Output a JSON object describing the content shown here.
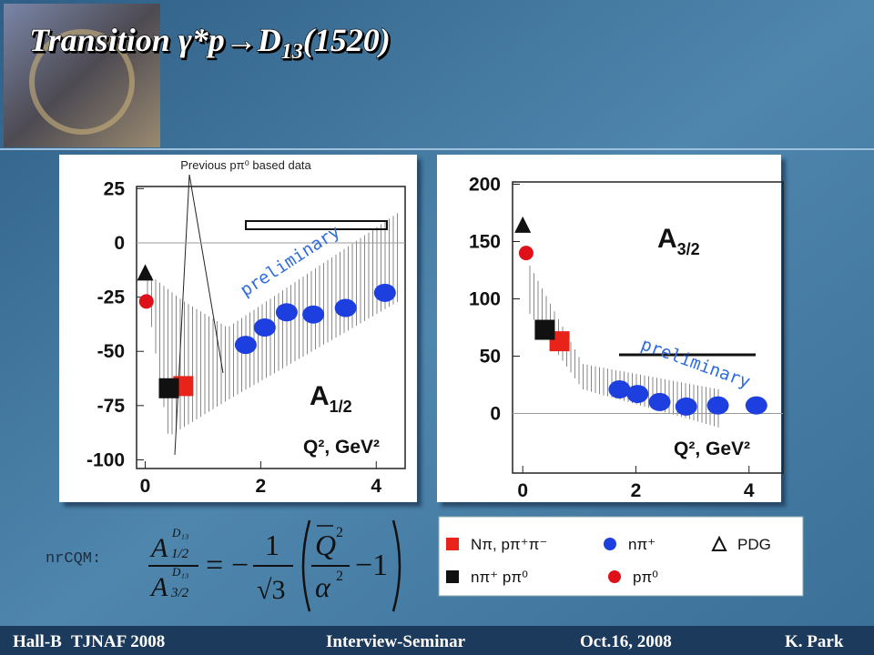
{
  "slide": {
    "title": "Transition γ*p→D",
    "title_subscript": "13",
    "title_suffix": "(1520)"
  },
  "chart_data": [
    {
      "type": "scatter",
      "title": "A",
      "title_subscript": "1/2",
      "xlabel": "Q², GeV²",
      "annotation": "Previous pπ⁰ based data",
      "watermark": "preliminary",
      "xlim": [
        -0.15,
        4.5
      ],
      "xticks": [
        0,
        2,
        4
      ],
      "ylim": [
        -104,
        26
      ],
      "yticks": [
        25,
        0,
        -25,
        -50,
        -75,
        -100
      ],
      "series": [
        {
          "name": "Nπ, pπ⁺π⁻",
          "color": "#e8231a",
          "marker": "square",
          "x": [
            0.66
          ],
          "values": [
            -66
          ]
        },
        {
          "name": "nπ⁺ pπ⁰",
          "color": "#111111",
          "marker": "square",
          "x": [
            0.41
          ],
          "values": [
            -67
          ]
        },
        {
          "name": "nπ⁺",
          "color": "#1d3fe0",
          "marker": "circle",
          "x": [
            1.74,
            2.07,
            2.45,
            2.91,
            3.47,
            4.15
          ],
          "values": [
            -47,
            -39,
            -32,
            -33,
            -30,
            -23
          ]
        },
        {
          "name": "pπ⁰",
          "color": "#e0101a",
          "marker": "circle",
          "x": [
            0.02
          ],
          "values": [
            -27
          ]
        },
        {
          "name": "PDG",
          "color": "#111111",
          "marker": "triangle",
          "x": [
            0.0
          ],
          "values": [
            -14
          ]
        }
      ]
    },
    {
      "type": "scatter",
      "title": "A",
      "title_subscript": "3/2",
      "xlabel": "Q², GeV²",
      "watermark": "preliminary",
      "xlim": [
        -0.18,
        4.6
      ],
      "xticks": [
        0,
        2,
        4
      ],
      "ylim": [
        -52,
        202
      ],
      "yticks": [
        200,
        150,
        100,
        50,
        0
      ],
      "series": [
        {
          "color": "#e8231a",
          "marker": "square",
          "x": [
            0.65
          ],
          "values": [
            63
          ]
        },
        {
          "color": "#111111",
          "marker": "square",
          "x": [
            0.39
          ],
          "values": [
            73
          ]
        },
        {
          "color": "#1d3fe0",
          "marker": "circle",
          "x": [
            1.71,
            2.03,
            2.42,
            2.89,
            3.45,
            4.13
          ],
          "values": [
            21,
            17,
            10,
            6,
            7,
            7
          ]
        },
        {
          "color": "#e0101a",
          "marker": "circle",
          "x": [
            0.06
          ],
          "values": [
            140
          ]
        },
        {
          "color": "#111111",
          "marker": "triangle",
          "x": [
            0.0
          ],
          "values": [
            164
          ]
        }
      ]
    }
  ],
  "formula": {
    "label": "nrCQM:",
    "a": "A",
    "d": "D₁₃",
    "half": "1/2",
    "three_half": "3/2",
    "eq": "=",
    "minus": "−",
    "one": "1",
    "sqrt3": "√3",
    "q": "Q",
    "sq": "2",
    "alpha": "α",
    "tail": "−1"
  },
  "footer": [
    "Hall-B",
    "TJNAF 2008",
    "Interview-Seminar",
    "Oct.16, 2008",
    "K. Park"
  ]
}
